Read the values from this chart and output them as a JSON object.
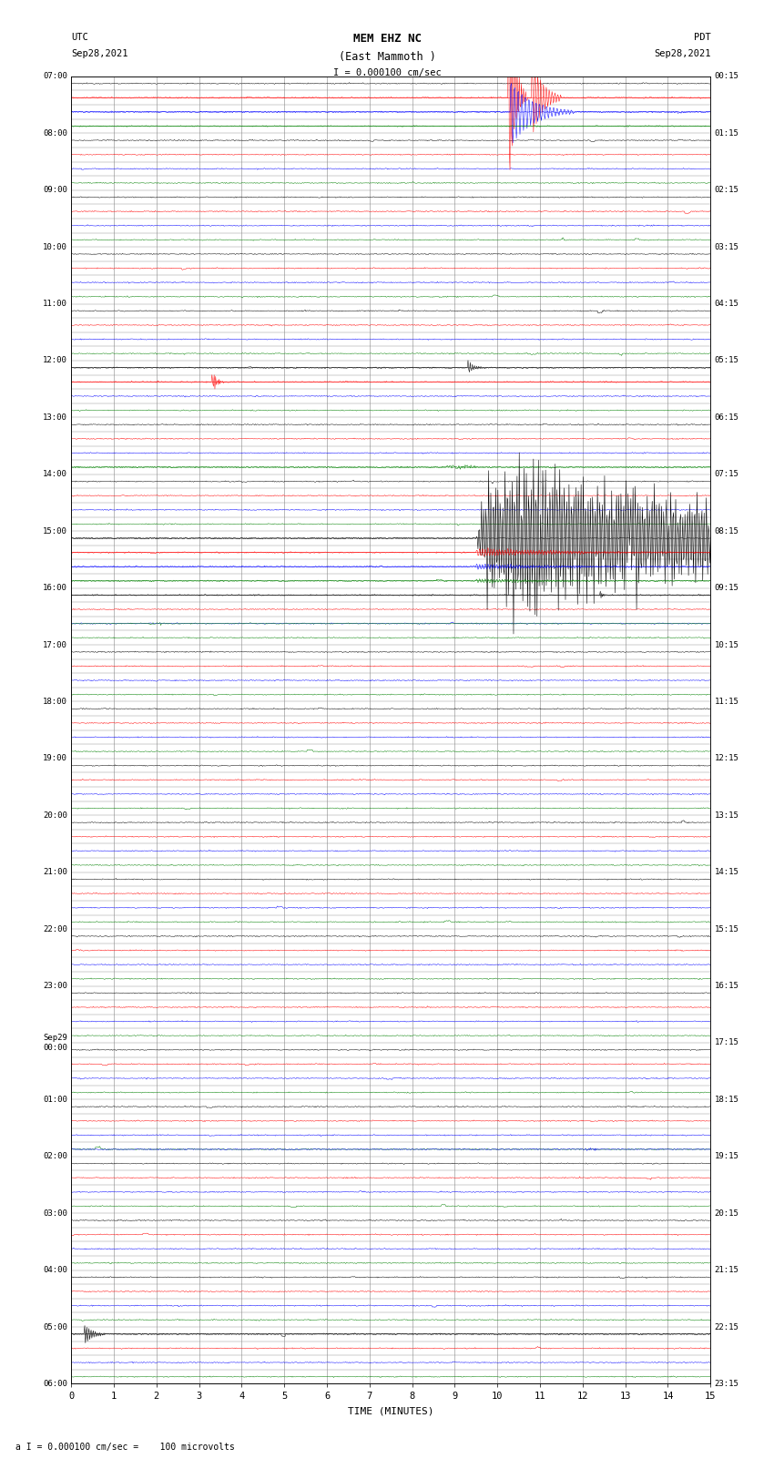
{
  "title_line1": "MEM EHZ NC",
  "title_line2": "(East Mammoth )",
  "scale_label": "I = 0.000100 cm/sec",
  "bottom_label": "a I = 0.000100 cm/sec =    100 microvolts",
  "xlabel": "TIME (MINUTES)",
  "background_color": "white",
  "grid_color": "#888888",
  "fig_width": 8.5,
  "fig_height": 16.13,
  "dpi": 100,
  "row_colors": [
    "black",
    "red",
    "blue",
    "green"
  ],
  "noise_amplitude": 0.018,
  "total_rows": 92,
  "left_utc_labels": {
    "0": "07:00",
    "4": "08:00",
    "8": "09:00",
    "12": "10:00",
    "16": "11:00",
    "20": "12:00",
    "24": "13:00",
    "28": "14:00",
    "32": "15:00",
    "36": "16:00",
    "40": "17:00",
    "44": "18:00",
    "48": "19:00",
    "52": "20:00",
    "56": "21:00",
    "60": "22:00",
    "64": "23:00",
    "68": "Sep29\n00:00",
    "72": "01:00",
    "76": "02:00",
    "80": "03:00",
    "84": "04:00",
    "88": "05:00",
    "92": "06:00"
  },
  "right_pdt_labels": {
    "0": "00:15",
    "4": "01:15",
    "8": "02:15",
    "12": "03:15",
    "16": "04:15",
    "20": "05:15",
    "24": "06:15",
    "28": "07:15",
    "32": "08:15",
    "36": "09:15",
    "40": "10:15",
    "44": "11:15",
    "48": "12:15",
    "52": "13:15",
    "56": "14:15",
    "60": "15:15",
    "64": "16:15",
    "68": "17:15",
    "72": "18:15",
    "76": "19:15",
    "80": "20:15",
    "84": "21:15",
    "88": "22:15",
    "92": "23:15"
  }
}
